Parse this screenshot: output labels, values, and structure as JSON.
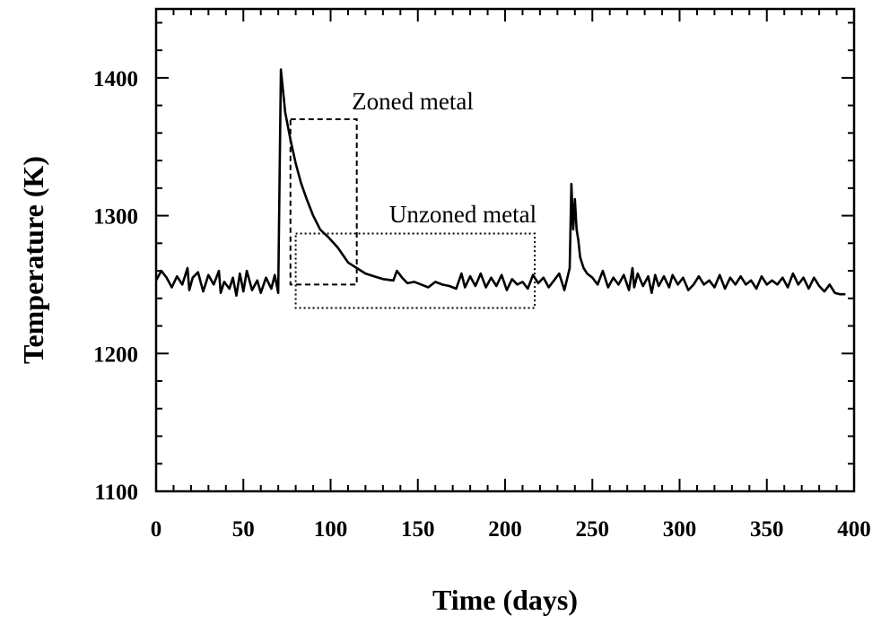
{
  "chart_data": {
    "type": "line",
    "title": "",
    "xlabel": "Time (days)",
    "ylabel": "Temperature (K)",
    "xlim": [
      0,
      400
    ],
    "ylim": [
      1100,
      1450
    ],
    "x_ticks": [
      0,
      50,
      100,
      150,
      200,
      250,
      300,
      350,
      400
    ],
    "x_tick_labels": [
      "0",
      "50",
      "100",
      "150",
      "200",
      "250",
      "300",
      "350",
      "400"
    ],
    "y_ticks": [
      1100,
      1200,
      1300,
      1400
    ],
    "y_tick_labels": [
      "1100",
      "1200",
      "1300",
      "1400"
    ],
    "x_minor_step": 10,
    "y_minor_step": 20,
    "grid": false,
    "legend": "none",
    "line_color": "#000000",
    "series": [
      {
        "x": [
          0,
          3,
          6,
          9,
          12,
          15,
          18,
          19,
          21,
          24,
          27,
          30,
          33,
          36,
          37,
          39,
          42,
          44,
          46,
          48,
          50,
          52,
          55,
          58,
          60,
          63,
          66,
          68,
          70,
          71.5,
          74,
          77,
          80,
          83,
          86,
          90,
          94,
          99,
          104,
          110,
          115,
          120,
          125,
          130,
          136,
          138,
          141,
          144,
          148,
          152,
          156,
          160,
          164,
          168,
          172,
          175,
          177,
          180,
          183,
          186,
          189,
          192,
          195,
          198,
          201,
          204,
          207,
          210,
          213,
          216,
          219,
          222,
          225,
          228,
          231,
          234,
          237,
          238,
          239,
          240,
          241,
          242,
          243,
          245,
          247,
          250,
          253,
          256,
          259,
          262,
          265,
          268,
          271,
          273,
          274,
          276,
          279,
          282,
          284,
          286,
          288,
          291,
          294,
          296,
          299,
          302,
          305,
          308,
          311,
          314,
          317,
          320,
          323,
          326,
          329,
          332,
          335,
          338,
          341,
          344,
          347,
          350,
          353,
          356,
          359,
          362,
          365,
          368,
          371,
          374,
          377,
          380,
          383,
          386,
          389,
          392,
          395
        ],
        "y": [
          1253,
          1260,
          1255,
          1248,
          1256,
          1250,
          1262,
          1246,
          1255,
          1259,
          1245,
          1257,
          1250,
          1260,
          1244,
          1252,
          1247,
          1255,
          1242,
          1258,
          1245,
          1260,
          1246,
          1253,
          1244,
          1255,
          1247,
          1257,
          1244,
          1406,
          1375,
          1355,
          1338,
          1324,
          1313,
          1300,
          1290,
          1284,
          1277,
          1266,
          1262,
          1258,
          1256,
          1254,
          1253,
          1260,
          1255,
          1251,
          1252,
          1250,
          1248,
          1252,
          1250,
          1249,
          1247,
          1258,
          1248,
          1256,
          1249,
          1258,
          1248,
          1255,
          1249,
          1257,
          1246,
          1254,
          1250,
          1252,
          1247,
          1257,
          1251,
          1255,
          1248,
          1253,
          1258,
          1246,
          1262,
          1323,
          1290,
          1312,
          1290,
          1282,
          1270,
          1262,
          1258,
          1255,
          1250,
          1260,
          1248,
          1255,
          1250,
          1257,
          1246,
          1262,
          1248,
          1258,
          1249,
          1256,
          1244,
          1257,
          1249,
          1256,
          1248,
          1257,
          1250,
          1255,
          1246,
          1250,
          1256,
          1250,
          1253,
          1248,
          1257,
          1247,
          1255,
          1250,
          1256,
          1250,
          1253,
          1247,
          1256,
          1250,
          1253,
          1250,
          1255,
          1248,
          1258,
          1250,
          1255,
          1247,
          1255,
          1249,
          1245,
          1250,
          1244,
          1243,
          1243
        ]
      }
    ],
    "annotations": [
      {
        "text": "Zoned metal",
        "box_x": [
          77,
          115
        ],
        "box_y": [
          1250,
          1370
        ],
        "dash": "dashed"
      },
      {
        "text": "Unzoned metal",
        "box_x": [
          80,
          217
        ],
        "box_y": [
          1233,
          1287
        ],
        "dash": "dotted"
      }
    ]
  }
}
